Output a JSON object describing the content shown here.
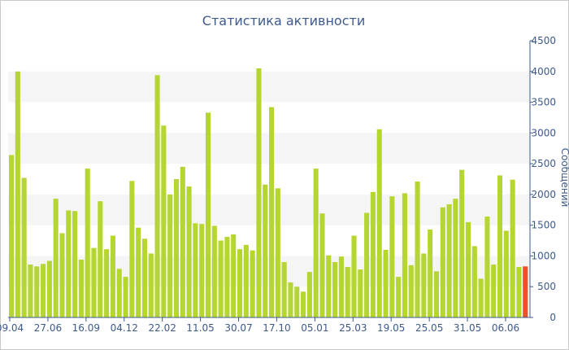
{
  "chart_data": {
    "type": "bar",
    "title": "Статистика активности",
    "ylabel": "Сообщений",
    "xlabel": "",
    "ylim": [
      0,
      4500
    ],
    "yticks": [
      0,
      500,
      1000,
      1500,
      2000,
      2500,
      3000,
      3500,
      4000,
      4500
    ],
    "x_tick_labels": [
      "09.04",
      "27.06",
      "16.09",
      "04.12",
      "22.02",
      "11.05",
      "30.07",
      "17.10",
      "05.01",
      "25.03",
      "19.05",
      "25.05",
      "31.05",
      "06.06"
    ],
    "grid": "alternating horizontal bands",
    "legend": "none",
    "colors": {
      "bar": "#b5d630",
      "last_bar": "#e8532b",
      "axis": "#3d5a8c",
      "band": "#f5f5f5"
    },
    "values": [
      2640,
      4000,
      2270,
      860,
      830,
      870,
      920,
      1930,
      1370,
      1740,
      1730,
      940,
      2420,
      1130,
      1890,
      1110,
      1330,
      790,
      660,
      2220,
      1460,
      1280,
      1040,
      3940,
      3120,
      2000,
      2250,
      2450,
      2130,
      1530,
      1520,
      3330,
      1490,
      1250,
      1310,
      1350,
      1110,
      1180,
      1090,
      4050,
      2160,
      3420,
      2100,
      900,
      570,
      500,
      420,
      740,
      2420,
      1690,
      1010,
      900,
      990,
      820,
      1330,
      780,
      1700,
      2040,
      3060,
      1100,
      1970,
      660,
      2020,
      850,
      2210,
      1040,
      1430,
      750,
      1790,
      1840,
      1930,
      2400,
      1550,
      1160,
      630,
      1640,
      860,
      2310,
      1410,
      2240,
      820,
      830
    ]
  }
}
